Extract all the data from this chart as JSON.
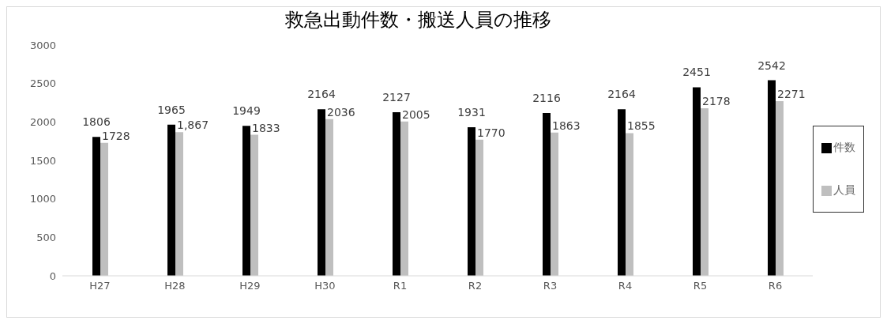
{
  "chart_data": {
    "type": "bar",
    "title": "救急出動件数・搬送人員の推移",
    "categories": [
      "H27",
      "H28",
      "H29",
      "H30",
      "R1",
      "R2",
      "R3",
      "R4",
      "R5",
      "R6"
    ],
    "series": [
      {
        "name": "件数",
        "color": "#000000",
        "values": [
          1806,
          1965,
          1949,
          2164,
          2127,
          1931,
          2116,
          2164,
          2451,
          2542
        ],
        "value_labels": [
          "1806",
          "1965",
          "1949",
          "2164",
          "2127",
          "1931",
          "2116",
          "2164",
          "2451",
          "2542"
        ]
      },
      {
        "name": "人員",
        "color": "#bfbfbf",
        "values": [
          1728,
          1867,
          1833,
          2036,
          2005,
          1770,
          1863,
          1855,
          2178,
          2271
        ],
        "value_labels": [
          "1728",
          "1,867",
          "1833",
          "2036",
          "2005",
          "1770",
          "1863",
          "1855",
          "2178",
          "2271"
        ]
      }
    ],
    "ylim": [
      0,
      3000
    ],
    "yticks": [
      0,
      500,
      1000,
      1500,
      2000,
      2500,
      3000
    ],
    "grid": false,
    "legend": "right"
  }
}
